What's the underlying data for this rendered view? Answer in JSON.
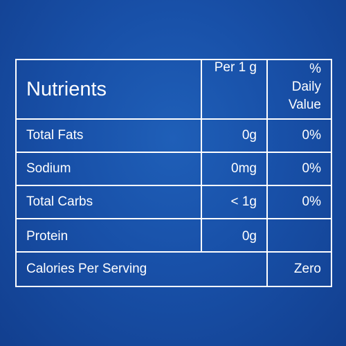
{
  "table": {
    "header": {
      "nutrients": "Nutrients",
      "per": "Per 1 g",
      "daily_value_line1": "% Daily",
      "daily_value_line2": "Value"
    },
    "rows": [
      {
        "nutrient": "Total Fats",
        "amount": "0g",
        "daily_value": "0%"
      },
      {
        "nutrient": "Sodium",
        "amount": "0mg",
        "daily_value": "0%"
      },
      {
        "nutrient": "Total Carbs",
        "amount": "< 1g",
        "daily_value": "0%"
      },
      {
        "nutrient": "Protein",
        "amount": "0g",
        "daily_value": ""
      }
    ],
    "calories": {
      "label": "Calories Per Serving",
      "value": "Zero"
    }
  },
  "colors": {
    "background": "#1850a8",
    "text": "#ffffff",
    "border": "#ffffff"
  }
}
